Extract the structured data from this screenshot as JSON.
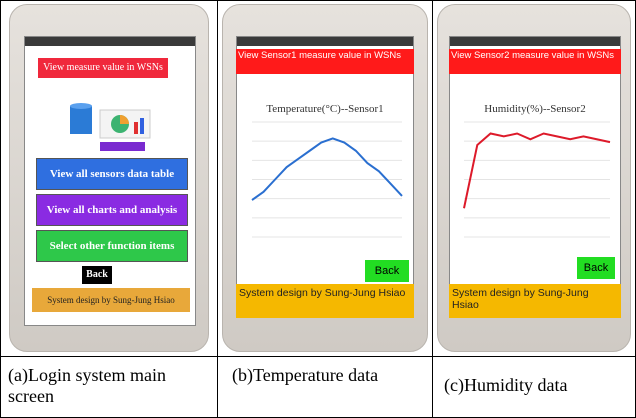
{
  "panels": [
    {
      "screen": {
        "header": "View measure value in WSNs",
        "buttons": [
          "View all sensors data table",
          "View all  charts and analysis",
          "Select other function items"
        ],
        "back": "Back",
        "footer": "System design by Sung-Jung Hsiao"
      },
      "caption": "(a)Login system main screen"
    },
    {
      "screen": {
        "header": "View Sensor1 measure value in WSNs",
        "chart": {
          "type": "line",
          "title": "Temperature(°C)--Sensor1",
          "color": "#2a6fd0",
          "ylim": [
            20,
            34
          ],
          "values": [
            24.5,
            25.5,
            27,
            28.5,
            29.5,
            30.5,
            31.5,
            32,
            31.5,
            30.5,
            29,
            28,
            26.5,
            25
          ]
        },
        "back": "Back",
        "footer": "System design by Sung-Jung Hsiao"
      },
      "caption": "(b)Temperature data"
    },
    {
      "screen": {
        "header": "View Sensor2 measure value in WSNs",
        "chart": {
          "type": "line",
          "title": "Humidity(%)--Sensor2",
          "color": "#dd1a2a",
          "ylim": [
            30,
            70
          ],
          "values": [
            40,
            62,
            66,
            65,
            66,
            64,
            66,
            65,
            64,
            65,
            64,
            63
          ]
        },
        "back": "Back",
        "footer": "System design by Sung-Jung Hsiao"
      },
      "caption": "(c)Humidity data"
    }
  ]
}
